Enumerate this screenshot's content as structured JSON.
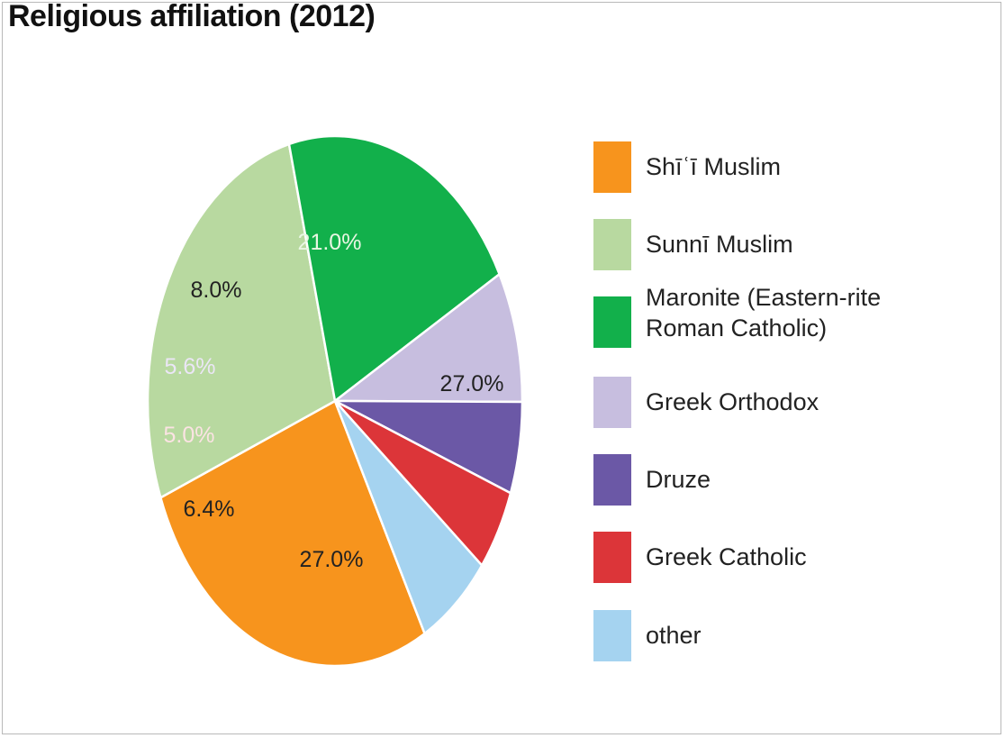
{
  "chart_data": {
    "type": "pie",
    "title": "Religious affiliation (2012)",
    "slices": [
      {
        "label": "Shīʿī Muslim",
        "legend_label": "Shīʿī Muslim",
        "value": 27.0,
        "value_label": "27.0%",
        "color": "#f7941d",
        "label_color": "#222222"
      },
      {
        "label": "Sunnī Muslim",
        "legend_label": "Sunnī Muslim",
        "value": 27.0,
        "value_label": "27.0%",
        "color": "#b8d9a0",
        "label_color": "#222222"
      },
      {
        "label": "Maronite (Eastern-rite Roman Catholic)",
        "legend_label": "Maronite (Eastern-rite\nRoman Catholic)",
        "value": 21.0,
        "value_label": "21.0%",
        "color": "#12b04b",
        "label_color": "#e9f6e3"
      },
      {
        "label": "Greek Orthodox",
        "legend_label": "Greek Orthodox",
        "value": 8.0,
        "value_label": "8.0%",
        "color": "#c7bedf",
        "label_color": "#222222"
      },
      {
        "label": "Druze",
        "legend_label": "Druze",
        "value": 5.6,
        "value_label": "5.6%",
        "color": "#6b58a6",
        "label_color": "#ebe6f6"
      },
      {
        "label": "Greek Catholic",
        "legend_label": "Greek Catholic",
        "value": 5.0,
        "value_label": "5.0%",
        "color": "#dc3539",
        "label_color": "#fbe3e3"
      },
      {
        "label": "other",
        "legend_label": "other",
        "value": 6.4,
        "value_label": "6.4%",
        "color": "#a5d3f0",
        "label_color": "#222222"
      }
    ],
    "legend_position": "right"
  }
}
